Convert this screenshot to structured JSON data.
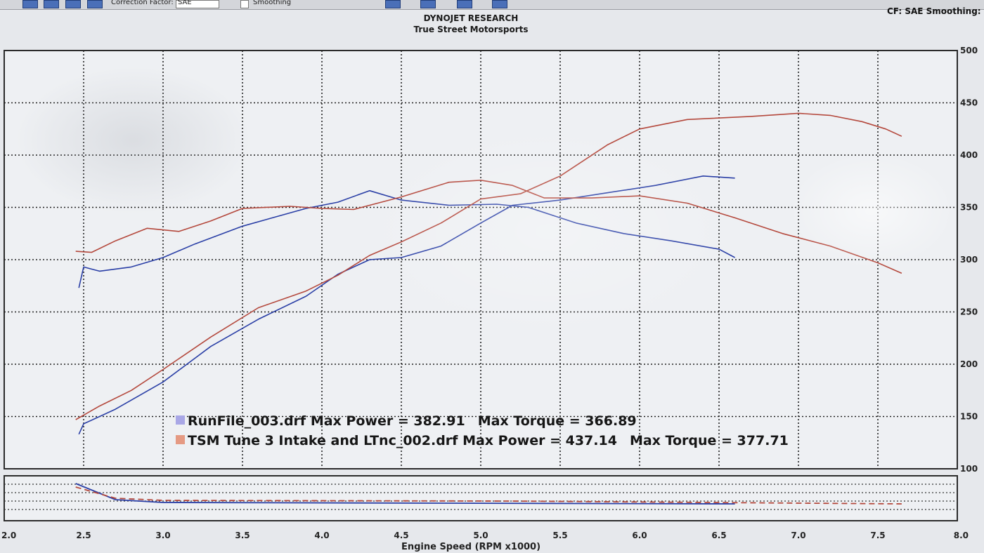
{
  "toolbar": {
    "correction_label": "Correction Factor:",
    "correction_value": "SAE",
    "smoothing_label": "Smoothing"
  },
  "header": {
    "cf_smoothing": "CF: SAE  Smoothing:"
  },
  "chart_data": {
    "type": "line",
    "title": "DYNOJET RESEARCH",
    "subtitle": "True Street Motorsports",
    "xlabel": "Engine Speed (RPM x1000)",
    "ylabel": "",
    "xlim": [
      2.0,
      8.0
    ],
    "ylim": [
      100,
      500
    ],
    "grid": true,
    "x_ticks": [
      "2.0",
      "2.5",
      "3.0",
      "3.5",
      "4.0",
      "4.5",
      "5.0",
      "5.5",
      "6.0",
      "6.5",
      "7.0",
      "7.5",
      "8.0"
    ],
    "y_ticks": [
      "100",
      "150",
      "200",
      "250",
      "300",
      "350",
      "400",
      "450",
      "500"
    ],
    "y_tick_values": [
      100,
      150,
      200,
      250,
      300,
      350,
      400,
      450,
      500
    ],
    "colors": {
      "run1": "#2a3fa6",
      "run2": "#b4483c",
      "run1_swatch": "#a9a7e6",
      "run2_swatch": "#e59a83"
    },
    "legend": [
      {
        "file": "RunFile_003.drf",
        "max_power_label": "Max Power = 382.91",
        "max_torque_label": "Max Torque = 366.89"
      },
      {
        "file": "TSM Tune 3 Intake and LTnc_002.drf",
        "max_power_label": "Max Power = 437.14",
        "max_torque_label": "Max Torque = 377.71"
      }
    ],
    "series": [
      {
        "name": "RunFile_003.drf",
        "color": "#2a3fa6",
        "x": [
          2.47,
          2.5,
          2.7,
          3.0,
          3.3,
          3.6,
          3.9,
          4.1,
          4.3,
          4.5,
          4.75,
          5.0,
          5.2,
          5.5,
          5.8,
          6.1,
          6.4,
          6.6
        ],
        "values": [
          133,
          143,
          157,
          183,
          217,
          243,
          265,
          286,
          300,
          302,
          313,
          335,
          352,
          357,
          364,
          371,
          380,
          378
        ]
      },
      {
        "name": "RunFile_003.drf",
        "color": "#2a3fa6",
        "x": [
          2.47,
          2.5,
          2.6,
          2.8,
          3.0,
          3.2,
          3.5,
          3.9,
          4.1,
          4.3,
          4.5,
          4.8,
          5.1,
          5.3,
          5.6,
          5.9,
          6.2,
          6.5,
          6.6
        ],
        "values": [
          273,
          293,
          289,
          293,
          302,
          315,
          332,
          349,
          355,
          366,
          357,
          352,
          353,
          350,
          335,
          325,
          318,
          310,
          302
        ]
      },
      {
        "name": "TSM Tune 3 Intake and LTnc_002.drf",
        "color": "#b4483c",
        "x": [
          2.45,
          2.6,
          2.8,
          3.0,
          3.3,
          3.6,
          3.9,
          4.1,
          4.3,
          4.5,
          4.75,
          5.0,
          5.25,
          5.5,
          5.8,
          6.0,
          6.3,
          6.7,
          7.0,
          7.2,
          7.4,
          7.55,
          7.65
        ],
        "values": [
          147,
          160,
          175,
          195,
          226,
          254,
          270,
          285,
          304,
          317,
          335,
          358,
          363,
          380,
          410,
          425,
          434,
          437,
          440,
          438,
          432,
          425,
          418
        ]
      },
      {
        "name": "TSM Tune 3 Intake and LTnc_002.drf",
        "color": "#b4483c",
        "x": [
          2.45,
          2.55,
          2.7,
          2.9,
          3.1,
          3.3,
          3.5,
          3.8,
          4.0,
          4.2,
          4.5,
          4.8,
          5.0,
          5.2,
          5.4,
          5.7,
          6.0,
          6.3,
          6.6,
          6.9,
          7.2,
          7.5,
          7.65
        ],
        "values": [
          308,
          307,
          318,
          330,
          327,
          337,
          349,
          351,
          349,
          348,
          360,
          374,
          376,
          371,
          359,
          359,
          361,
          354,
          340,
          325,
          313,
          297,
          287
        ]
      }
    ]
  }
}
